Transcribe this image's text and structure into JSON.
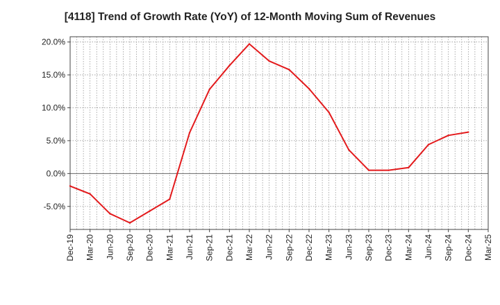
{
  "chart_data": {
    "type": "line",
    "title": "[4118]  Trend of Growth Rate (YoY) of 12-Month Moving Sum of Revenues",
    "xlabel": "",
    "ylabel": "",
    "y_unit": "%",
    "ylim": [
      -8.5,
      20.8
    ],
    "y_ticks": [
      {
        "value": 20,
        "label": "20.0%"
      },
      {
        "value": 15,
        "label": "15.0%"
      },
      {
        "value": 10,
        "label": "10.0%"
      },
      {
        "value": 5,
        "label": "5.0%"
      },
      {
        "value": 0,
        "label": "0.0%"
      },
      {
        "value": -5,
        "label": "-5.0%"
      }
    ],
    "x_ticks": [
      "Dec-19",
      "Mar-20",
      "Jun-20",
      "Sep-20",
      "Dec-20",
      "Mar-21",
      "Jun-21",
      "Sep-21",
      "Dec-21",
      "Mar-22",
      "Jun-22",
      "Sep-22",
      "Dec-22",
      "Mar-23",
      "Jun-23",
      "Sep-23",
      "Dec-23",
      "Mar-24",
      "Jun-24",
      "Sep-24",
      "Dec-24",
      "Mar-25"
    ],
    "grid": true,
    "line_color": "#e31a1c",
    "series": [
      {
        "x": [
          "Dec-19",
          "Mar-20",
          "Jun-20",
          "Sep-20",
          "Dec-20",
          "Mar-21",
          "Jun-21",
          "Sep-21",
          "Dec-21",
          "Mar-22",
          "Jun-22",
          "Sep-22",
          "Dec-22",
          "Mar-23",
          "Jun-23",
          "Sep-23",
          "Dec-23",
          "Mar-24",
          "Jun-24",
          "Sep-24",
          "Dec-24"
        ],
        "values": [
          -1.9,
          -3.1,
          -6.1,
          -7.5,
          -5.7,
          -3.9,
          6.2,
          12.8,
          16.4,
          19.7,
          17.1,
          15.8,
          12.9,
          9.3,
          3.6,
          0.5,
          0.5,
          0.9,
          4.4,
          5.8,
          6.3
        ]
      }
    ]
  }
}
